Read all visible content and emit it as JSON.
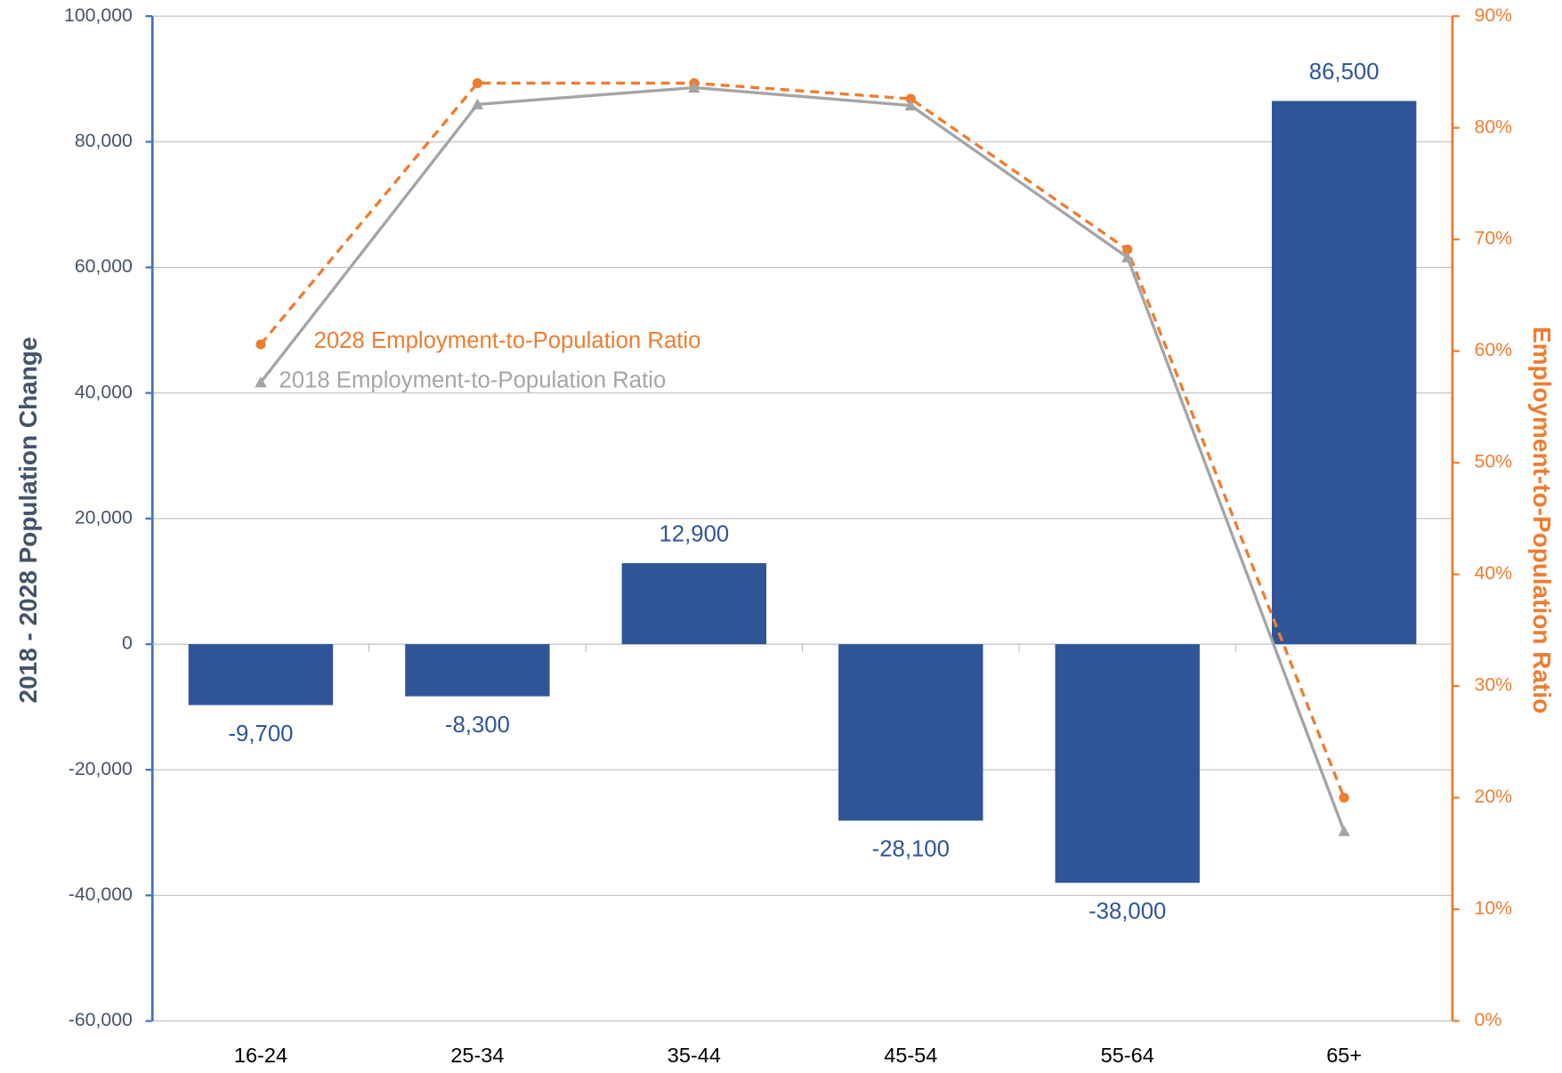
{
  "chart_data": {
    "type": "bar",
    "categories": [
      "16-24",
      "25-34",
      "35-44",
      "45-54",
      "55-64",
      "65+"
    ],
    "values": [
      -9700,
      -8300,
      12900,
      -28100,
      -38000,
      86500
    ],
    "value_labels": [
      "-9,700",
      "-8,300",
      "12,900",
      "-28,100",
      "-38,000",
      "86,500"
    ],
    "color": "#2f5597",
    "ylabel": "2018 - 2028 Population Change",
    "y2label": "Employment-to-Population Ratio",
    "ylim": [
      -60000,
      100000
    ],
    "yticks": [
      {
        "value": -60000,
        "label": "-60,000"
      },
      {
        "value": -40000,
        "label": "-40,000"
      },
      {
        "value": -20000,
        "label": "-20,000"
      },
      0,
      {
        "value": 20000,
        "label": "20,000"
      },
      {
        "value": 40000,
        "label": "40,000"
      },
      {
        "value": 60000,
        "label": "60,000"
      },
      {
        "value": 80000,
        "label": "80,000"
      },
      {
        "value": 100000,
        "label": "100,000"
      }
    ],
    "y2lim": [
      0,
      90
    ],
    "y2ticks": [
      {
        "value": 0,
        "label": "0%"
      },
      {
        "value": 10,
        "label": "10%"
      },
      {
        "value": 20,
        "label": "20%"
      },
      {
        "value": 30,
        "label": "30%"
      },
      {
        "value": 40,
        "label": "40%"
      },
      {
        "value": 50,
        "label": "50%"
      },
      {
        "value": 60,
        "label": "60%"
      },
      {
        "value": 70,
        "label": "70%"
      },
      {
        "value": 80,
        "label": "80%"
      },
      {
        "value": 90,
        "label": "90%"
      }
    ],
    "grid": true,
    "series": [
      {
        "name": "2028 Employment-to-Population Ratio",
        "type": "line",
        "axis": "y2",
        "color": "#ed7d31",
        "dashed": true,
        "marker": "circle",
        "values": [
          60.6,
          84,
          84,
          82.6,
          69.1,
          20
        ]
      },
      {
        "name": "2018 Employment-to-Population Ratio",
        "type": "line",
        "axis": "y2",
        "color": "#a5a5a5",
        "dashed": false,
        "marker": "triangle",
        "values": [
          57.2,
          82.1,
          83.6,
          82,
          68.4,
          17
        ]
      }
    ]
  }
}
